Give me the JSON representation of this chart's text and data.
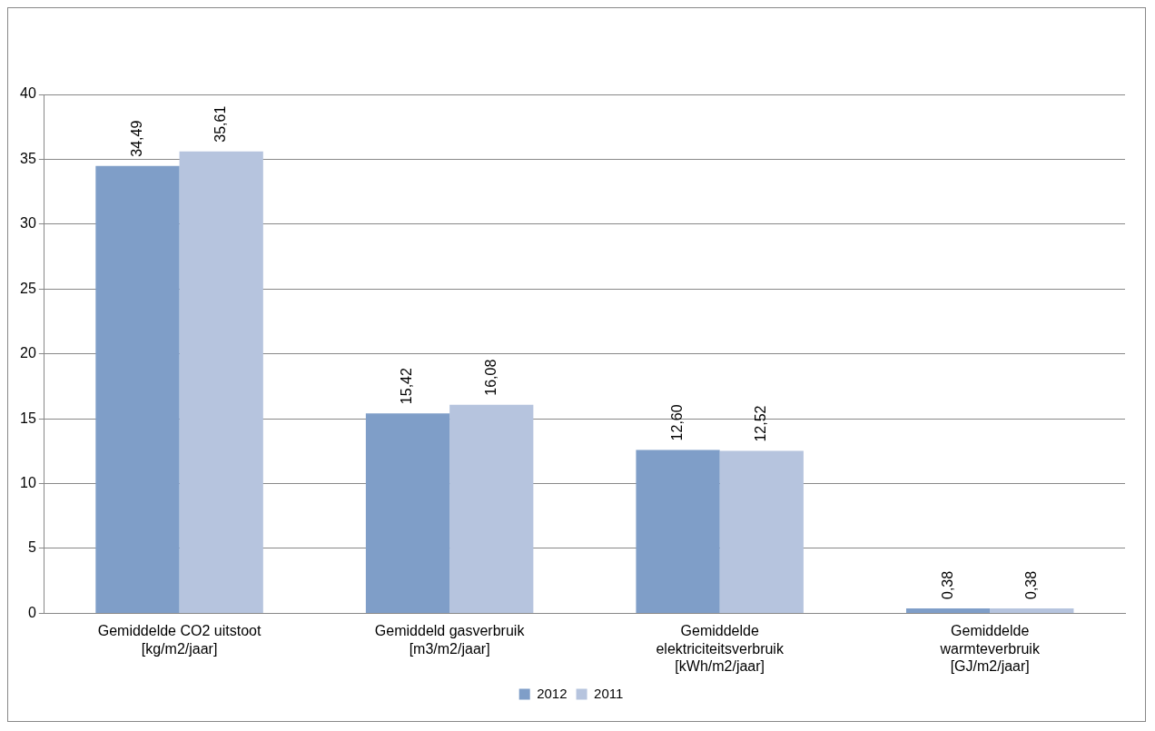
{
  "chart_data": {
    "type": "bar",
    "categories": [
      "Gemiddelde CO2 uitstoot [kg/m2/jaar]",
      "Gemiddeld gasverbruik [m3/m2/jaar]",
      "Gemiddelde elektriciteitsverbruik [kWh/m2/jaar]",
      "Gemiddelde warmteverbruik [GJ/m2/jaar]"
    ],
    "series": [
      {
        "name": "2012",
        "color": "#7f9ec8",
        "values": [
          34.49,
          15.42,
          12.6,
          0.38
        ],
        "value_labels": [
          "34,49",
          "15,42",
          "12,60",
          "0,38"
        ]
      },
      {
        "name": "2011",
        "color": "#b6c4de",
        "values": [
          35.61,
          16.08,
          12.52,
          0.38
        ],
        "value_labels": [
          "35,61",
          "16,08",
          "12,52",
          "0,38"
        ]
      }
    ],
    "ylim": [
      0,
      40
    ],
    "yticks": [
      0,
      5,
      10,
      15,
      20,
      25,
      30,
      35,
      40
    ],
    "grid": "y",
    "legend": "bottom"
  }
}
